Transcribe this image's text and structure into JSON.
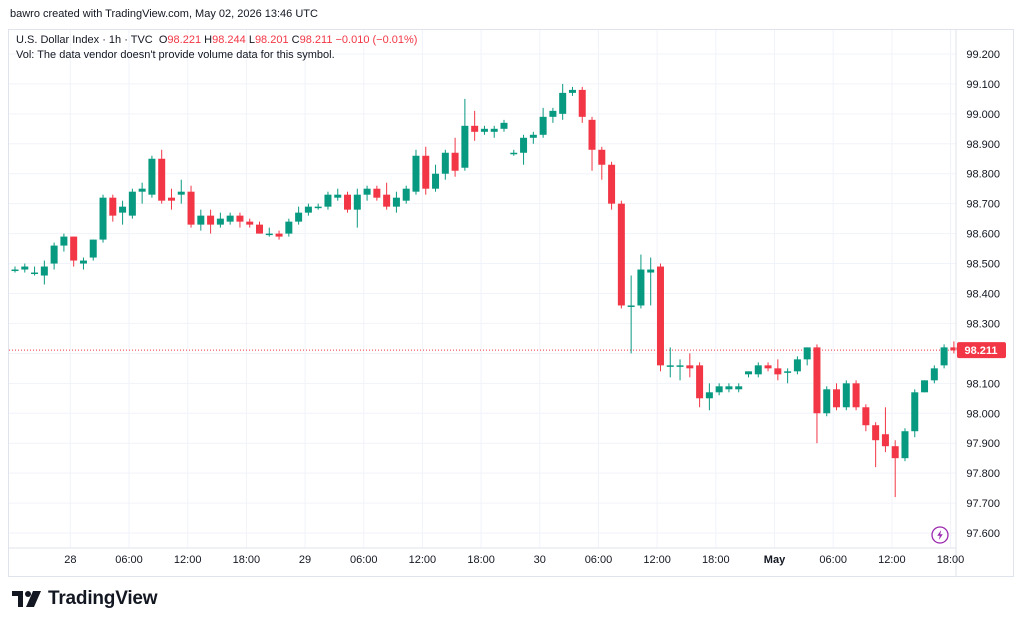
{
  "caption": "bawro created with TradingView.com, May 02, 2026 13:46 UTC",
  "legend": {
    "symbol": "U.S. Dollar Index · 1h · TVC",
    "o_label": "O",
    "o_value": "98.221",
    "h_label": "H",
    "h_value": "98.244",
    "l_label": "L",
    "l_value": "98.201",
    "c_label": "C",
    "c_value": "98.211",
    "change": "−0.010 (−0.01%)",
    "vol_note": "Vol: The data vendor doesn't provide volume data for this symbol."
  },
  "brand": {
    "name": "TradingView"
  },
  "colors": {
    "up": "#089981",
    "down": "#f23645",
    "grid": "#f0f3fa",
    "price_line": "#f23645",
    "alert_icon": "#9c27b0"
  },
  "icons": {
    "logo": "tradingview-logo-icon",
    "alert": "lightning-alert-icon"
  },
  "chart_data": {
    "type": "candlestick",
    "title": "U.S. Dollar Index · 1h · TVC",
    "ylim": [
      97.55,
      99.28
    ],
    "y_ticks": [
      "99.200",
      "99.100",
      "99.000",
      "98.900",
      "98.800",
      "98.700",
      "98.600",
      "98.500",
      "98.400",
      "98.300",
      "98.200",
      "98.100",
      "98.000",
      "97.900",
      "97.800",
      "97.700",
      "97.600"
    ],
    "x_tick_labels": [
      {
        "label": "28",
        "index": 3
      },
      {
        "label": "06:00",
        "index": 9
      },
      {
        "label": "12:00",
        "index": 15
      },
      {
        "label": "18:00",
        "index": 21
      },
      {
        "label": "29",
        "index": 27
      },
      {
        "label": "06:00",
        "index": 33
      },
      {
        "label": "12:00",
        "index": 39
      },
      {
        "label": "18:00",
        "index": 45
      },
      {
        "label": "30",
        "index": 51
      },
      {
        "label": "06:00",
        "index": 57
      },
      {
        "label": "12:00",
        "index": 63
      },
      {
        "label": "18:00",
        "index": 69
      },
      {
        "label": "May",
        "index": 75
      },
      {
        "label": "06:00",
        "index": 81
      },
      {
        "label": "12:00",
        "index": 87
      },
      {
        "label": "18:00",
        "index": 93
      }
    ],
    "last_price": "98.211",
    "candles": [
      {
        "o": 98.48,
        "h": 98.49,
        "l": 98.47,
        "c": 98.48
      },
      {
        "o": 98.48,
        "h": 98.5,
        "l": 98.47,
        "c": 98.49
      },
      {
        "o": 98.47,
        "h": 98.49,
        "l": 98.46,
        "c": 98.47
      },
      {
        "o": 98.46,
        "h": 98.51,
        "l": 98.43,
        "c": 98.49
      },
      {
        "o": 98.5,
        "h": 98.57,
        "l": 98.48,
        "c": 98.56
      },
      {
        "o": 98.56,
        "h": 98.6,
        "l": 98.54,
        "c": 98.59
      },
      {
        "o": 98.59,
        "h": 98.59,
        "l": 98.49,
        "c": 98.51
      },
      {
        "o": 98.5,
        "h": 98.52,
        "l": 98.48,
        "c": 98.51
      },
      {
        "o": 98.52,
        "h": 98.58,
        "l": 98.51,
        "c": 98.58
      },
      {
        "o": 98.58,
        "h": 98.73,
        "l": 98.57,
        "c": 98.72
      },
      {
        "o": 98.72,
        "h": 98.73,
        "l": 98.64,
        "c": 98.66
      },
      {
        "o": 98.67,
        "h": 98.71,
        "l": 98.63,
        "c": 98.69
      },
      {
        "o": 98.66,
        "h": 98.75,
        "l": 98.65,
        "c": 98.74
      },
      {
        "o": 98.74,
        "h": 98.77,
        "l": 98.7,
        "c": 98.75
      },
      {
        "o": 98.73,
        "h": 98.86,
        "l": 98.72,
        "c": 98.85
      },
      {
        "o": 98.85,
        "h": 98.88,
        "l": 98.7,
        "c": 98.71
      },
      {
        "o": 98.72,
        "h": 98.75,
        "l": 98.68,
        "c": 98.71
      },
      {
        "o": 98.73,
        "h": 98.78,
        "l": 98.7,
        "c": 98.74
      },
      {
        "o": 98.74,
        "h": 98.76,
        "l": 98.62,
        "c": 98.63
      },
      {
        "o": 98.63,
        "h": 98.68,
        "l": 98.61,
        "c": 98.66
      },
      {
        "o": 98.66,
        "h": 98.68,
        "l": 98.6,
        "c": 98.63
      },
      {
        "o": 98.63,
        "h": 98.67,
        "l": 98.62,
        "c": 98.65
      },
      {
        "o": 98.64,
        "h": 98.67,
        "l": 98.63,
        "c": 98.66
      },
      {
        "o": 98.66,
        "h": 98.67,
        "l": 98.62,
        "c": 98.64
      },
      {
        "o": 98.64,
        "h": 98.65,
        "l": 98.62,
        "c": 98.63
      },
      {
        "o": 98.63,
        "h": 98.64,
        "l": 98.6,
        "c": 98.6
      },
      {
        "o": 98.6,
        "h": 98.62,
        "l": 98.59,
        "c": 98.6
      },
      {
        "o": 98.6,
        "h": 98.61,
        "l": 98.58,
        "c": 98.59
      },
      {
        "o": 98.6,
        "h": 98.65,
        "l": 98.59,
        "c": 98.64
      },
      {
        "o": 98.64,
        "h": 98.69,
        "l": 98.63,
        "c": 98.67
      },
      {
        "o": 98.67,
        "h": 98.7,
        "l": 98.66,
        "c": 98.69
      },
      {
        "o": 98.69,
        "h": 98.7,
        "l": 98.68,
        "c": 98.69
      },
      {
        "o": 98.69,
        "h": 98.74,
        "l": 98.68,
        "c": 98.73
      },
      {
        "o": 98.72,
        "h": 98.75,
        "l": 98.71,
        "c": 98.73
      },
      {
        "o": 98.73,
        "h": 98.74,
        "l": 98.67,
        "c": 98.68
      },
      {
        "o": 98.68,
        "h": 98.75,
        "l": 98.62,
        "c": 98.73
      },
      {
        "o": 98.73,
        "h": 98.76,
        "l": 98.71,
        "c": 98.75
      },
      {
        "o": 98.75,
        "h": 98.76,
        "l": 98.71,
        "c": 98.72
      },
      {
        "o": 98.73,
        "h": 98.77,
        "l": 98.68,
        "c": 98.69
      },
      {
        "o": 98.69,
        "h": 98.74,
        "l": 98.67,
        "c": 98.72
      },
      {
        "o": 98.71,
        "h": 98.76,
        "l": 98.7,
        "c": 98.75
      },
      {
        "o": 98.74,
        "h": 98.88,
        "l": 98.73,
        "c": 98.86
      },
      {
        "o": 98.86,
        "h": 98.89,
        "l": 98.73,
        "c": 98.75
      },
      {
        "o": 98.75,
        "h": 98.83,
        "l": 98.74,
        "c": 98.8
      },
      {
        "o": 98.8,
        "h": 98.88,
        "l": 98.78,
        "c": 98.87
      },
      {
        "o": 98.87,
        "h": 98.92,
        "l": 98.79,
        "c": 98.81
      },
      {
        "o": 98.82,
        "h": 99.05,
        "l": 98.81,
        "c": 98.96
      },
      {
        "o": 98.96,
        "h": 99.01,
        "l": 98.91,
        "c": 98.94
      },
      {
        "o": 98.94,
        "h": 98.96,
        "l": 98.93,
        "c": 98.95
      },
      {
        "o": 98.94,
        "h": 98.96,
        "l": 98.92,
        "c": 98.95
      },
      {
        "o": 98.95,
        "h": 98.98,
        "l": 98.94,
        "c": 98.97
      },
      {
        "o": 98.87,
        "h": 98.88,
        "l": 98.86,
        "c": 98.87
      },
      {
        "o": 98.87,
        "h": 98.93,
        "l": 98.83,
        "c": 98.92
      },
      {
        "o": 98.92,
        "h": 98.94,
        "l": 98.9,
        "c": 98.93
      },
      {
        "o": 98.93,
        "h": 99.02,
        "l": 98.92,
        "c": 98.99
      },
      {
        "o": 98.99,
        "h": 99.02,
        "l": 98.97,
        "c": 99.01
      },
      {
        "o": 99.0,
        "h": 99.1,
        "l": 98.98,
        "c": 99.07
      },
      {
        "o": 99.07,
        "h": 99.09,
        "l": 99.06,
        "c": 99.08
      },
      {
        "o": 99.08,
        "h": 99.09,
        "l": 98.97,
        "c": 98.99
      },
      {
        "o": 98.98,
        "h": 98.99,
        "l": 98.81,
        "c": 98.88
      },
      {
        "o": 98.88,
        "h": 98.89,
        "l": 98.78,
        "c": 98.83
      },
      {
        "o": 98.83,
        "h": 98.84,
        "l": 98.68,
        "c": 98.7
      },
      {
        "o": 98.7,
        "h": 98.71,
        "l": 98.35,
        "c": 98.36
      },
      {
        "o": 98.36,
        "h": 98.46,
        "l": 98.2,
        "c": 98.36
      },
      {
        "o": 98.36,
        "h": 98.53,
        "l": 98.35,
        "c": 98.48
      },
      {
        "o": 98.47,
        "h": 98.52,
        "l": 98.36,
        "c": 98.48
      },
      {
        "o": 98.49,
        "h": 98.5,
        "l": 98.14,
        "c": 98.16
      },
      {
        "o": 98.16,
        "h": 98.22,
        "l": 98.12,
        "c": 98.16
      },
      {
        "o": 98.16,
        "h": 98.18,
        "l": 98.11,
        "c": 98.16
      },
      {
        "o": 98.16,
        "h": 98.2,
        "l": 98.12,
        "c": 98.15
      },
      {
        "o": 98.16,
        "h": 98.17,
        "l": 98.02,
        "c": 98.05
      },
      {
        "o": 98.05,
        "h": 98.1,
        "l": 98.01,
        "c": 98.07
      },
      {
        "o": 98.07,
        "h": 98.1,
        "l": 98.06,
        "c": 98.09
      },
      {
        "o": 98.08,
        "h": 98.1,
        "l": 98.07,
        "c": 98.09
      },
      {
        "o": 98.08,
        "h": 98.1,
        "l": 98.07,
        "c": 98.09
      },
      {
        "o": 98.13,
        "h": 98.14,
        "l": 98.12,
        "c": 98.14
      },
      {
        "o": 98.13,
        "h": 98.17,
        "l": 98.12,
        "c": 98.16
      },
      {
        "o": 98.16,
        "h": 98.17,
        "l": 98.14,
        "c": 98.15
      },
      {
        "o": 98.15,
        "h": 98.18,
        "l": 98.11,
        "c": 98.13
      },
      {
        "o": 98.14,
        "h": 98.15,
        "l": 98.1,
        "c": 98.14
      },
      {
        "o": 98.14,
        "h": 98.19,
        "l": 98.13,
        "c": 98.18
      },
      {
        "o": 98.18,
        "h": 98.22,
        "l": 98.16,
        "c": 98.22
      },
      {
        "o": 98.22,
        "h": 98.23,
        "l": 97.9,
        "c": 98.0
      },
      {
        "o": 98.0,
        "h": 98.09,
        "l": 97.99,
        "c": 98.08
      },
      {
        "o": 98.08,
        "h": 98.1,
        "l": 98.01,
        "c": 98.02
      },
      {
        "o": 98.02,
        "h": 98.11,
        "l": 98.01,
        "c": 98.1
      },
      {
        "o": 98.1,
        "h": 98.11,
        "l": 98.01,
        "c": 98.02
      },
      {
        "o": 98.02,
        "h": 98.03,
        "l": 97.94,
        "c": 97.96
      },
      {
        "o": 97.96,
        "h": 97.97,
        "l": 97.82,
        "c": 97.91
      },
      {
        "o": 97.93,
        "h": 98.02,
        "l": 97.87,
        "c": 97.89
      },
      {
        "o": 97.89,
        "h": 97.91,
        "l": 97.72,
        "c": 97.85
      },
      {
        "o": 97.85,
        "h": 97.95,
        "l": 97.84,
        "c": 97.94
      },
      {
        "o": 97.94,
        "h": 98.08,
        "l": 97.92,
        "c": 98.07
      },
      {
        "o": 98.07,
        "h": 98.11,
        "l": 98.07,
        "c": 98.11
      },
      {
        "o": 98.11,
        "h": 98.16,
        "l": 98.1,
        "c": 98.15
      },
      {
        "o": 98.16,
        "h": 98.23,
        "l": 98.15,
        "c": 98.22
      },
      {
        "o": 98.22,
        "h": 98.24,
        "l": 98.2,
        "c": 98.21
      }
    ]
  }
}
